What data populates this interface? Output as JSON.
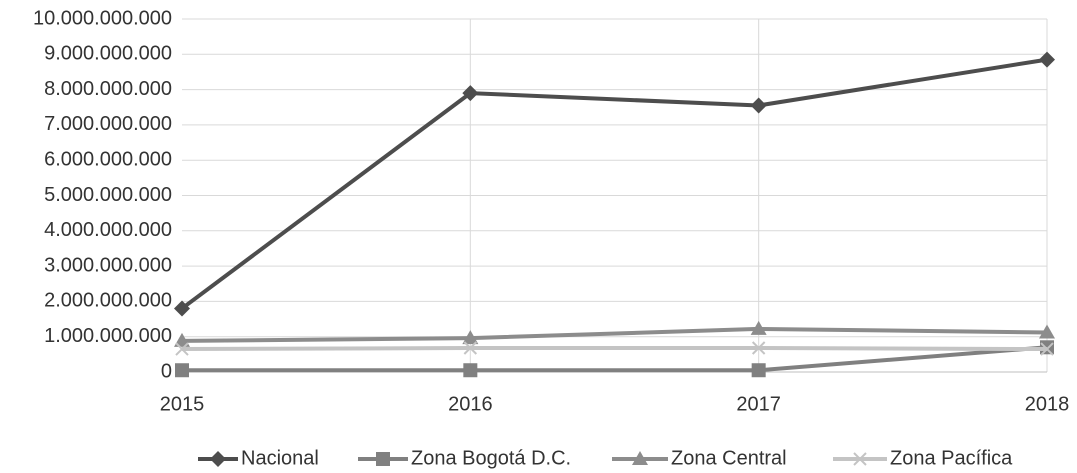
{
  "chart_data": {
    "type": "line",
    "categories": [
      "2015",
      "2016",
      "2017",
      "2018"
    ],
    "series": [
      {
        "name": "Nacional",
        "color": "#4d4d4d",
        "marker": "diamond",
        "values": [
          1800000000,
          7900000000,
          7550000000,
          8850000000
        ]
      },
      {
        "name": "Zona Bogotá D.C.",
        "color": "#808080",
        "marker": "square",
        "values": [
          50000000,
          50000000,
          50000000,
          700000000
        ]
      },
      {
        "name": "Zona Central",
        "color": "#8c8c8c",
        "marker": "triangle",
        "values": [
          880000000,
          960000000,
          1220000000,
          1120000000
        ]
      },
      {
        "name": "Zona Pacífica",
        "color": "#c4c4c4",
        "marker": "x",
        "values": [
          650000000,
          680000000,
          680000000,
          650000000
        ]
      }
    ],
    "ylim": [
      0,
      10000000000
    ],
    "yticks": [
      0,
      {
        "value": 1000000000,
        "label": "1.000.000.000"
      },
      {
        "value": 2000000000,
        "label": "2.000.000.000"
      },
      {
        "value": 3000000000,
        "label": "3.000.000.000"
      },
      {
        "value": 4000000000,
        "label": "4.000.000.000"
      },
      {
        "value": 5000000000,
        "label": "5.000.000.000"
      },
      {
        "value": 6000000000,
        "label": "6.000.000.000"
      },
      {
        "value": 7000000000,
        "label": "7.000.000.000"
      },
      {
        "value": 8000000000,
        "label": "8.000.000.000"
      },
      {
        "value": 9000000000,
        "label": "9.000.000.000"
      },
      {
        "value": 10000000000,
        "label": "10.000.000.000"
      }
    ],
    "grid": true,
    "legend": "bottom"
  }
}
